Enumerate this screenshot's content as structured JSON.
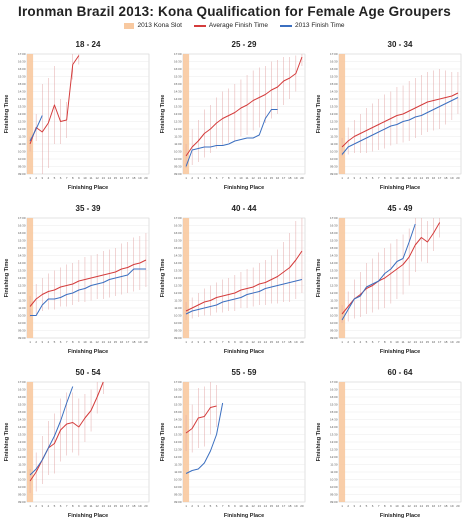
{
  "title": "Ironman Brazil 2013: Kona Qualification for Female Age Groupers",
  "legend": {
    "kona_slot": "2013 Kona Slot",
    "average": "Average Finish Time",
    "finish_2013": "2013 Finish Time"
  },
  "colors": {
    "kona_slot": "#f8c9a0",
    "average": "#d43c3c",
    "finish_2013": "#3b6fc0",
    "error_bars": "#e3a8a8",
    "gridline": "#e6e6e6"
  },
  "axis": {
    "xlabel": "Finishing Place",
    "ylabel": "Finishing Time",
    "x_ticks": [
      "1",
      "2",
      "3",
      "4",
      "5",
      "6",
      "7",
      "8",
      "9",
      "10",
      "11",
      "12",
      "13",
      "14",
      "15",
      "16",
      "17",
      "18",
      "19",
      "20"
    ]
  },
  "chart_data": [
    {
      "type": "line",
      "title": "18 - 24",
      "xlabel": "Finishing Place",
      "ylabel": "Finishing Time",
      "xlim": [
        1,
        20
      ],
      "y_ticks": [
        "09:00",
        "09:30",
        "10:00",
        "10:30",
        "11:00",
        "11:30",
        "12:00",
        "12:30",
        "13:00",
        "13:30",
        "14:00",
        "14:30",
        "15:00",
        "15:30",
        "16:00",
        "16:30",
        "17:00"
      ],
      "ylim": [
        9.0,
        17.0
      ],
      "kona_slots": 1,
      "series": [
        {
          "name": "Average Finish Time",
          "x": [
            1,
            2,
            3,
            4,
            5,
            6,
            7,
            8,
            9
          ],
          "y": [
            11.0,
            12.1,
            11.8,
            12.4,
            13.6,
            12.5,
            12.6,
            16.3,
            16.9
          ],
          "err": [
            0.5,
            0.9,
            3.2,
            3.0,
            2.6,
            1.5,
            1.2,
            1.0,
            0.6
          ]
        },
        {
          "name": "2013 Finish Time",
          "x": [
            1,
            2,
            3
          ],
          "y": [
            11.2,
            12.0,
            12.9
          ]
        }
      ]
    },
    {
      "type": "line",
      "title": "25 - 29",
      "xlabel": "Finishing Place",
      "ylabel": "Finishing Time",
      "xlim": [
        1,
        20
      ],
      "y_ticks": [
        "09:00",
        "09:30",
        "10:00",
        "10:30",
        "11:00",
        "11:30",
        "12:00",
        "12:30",
        "13:00",
        "13:30",
        "14:00",
        "14:30",
        "15:00",
        "15:30",
        "16:00",
        "16:30",
        "17:00"
      ],
      "ylim": [
        9.0,
        17.0
      ],
      "kona_slots": 1,
      "series": [
        {
          "name": "Average Finish Time",
          "x": [
            1,
            2,
            3,
            4,
            5,
            6,
            7,
            8,
            9,
            10,
            11,
            12,
            13,
            14,
            15,
            16,
            17,
            18,
            19,
            20
          ],
          "y": [
            10.2,
            10.8,
            11.2,
            11.7,
            12.0,
            12.4,
            12.7,
            12.9,
            13.1,
            13.4,
            13.6,
            13.9,
            14.1,
            14.3,
            14.6,
            14.8,
            15.2,
            15.4,
            15.7,
            16.8
          ],
          "err": [
            0.8,
            1.2,
            1.4,
            1.6,
            1.6,
            1.7,
            1.8,
            1.8,
            1.9,
            1.9,
            2.0,
            2.0,
            2.0,
            1.9,
            1.9,
            1.8,
            1.6,
            1.4,
            1.2,
            0.6
          ]
        },
        {
          "name": "2013 Finish Time",
          "x": [
            1,
            2,
            3,
            4,
            5,
            6,
            7,
            8,
            9,
            10,
            11,
            12,
            13,
            14,
            15,
            16
          ],
          "y": [
            9.5,
            10.6,
            10.7,
            10.8,
            10.8,
            10.9,
            10.9,
            11.0,
            11.2,
            11.3,
            11.4,
            11.4,
            11.6,
            12.7,
            13.3,
            13.3
          ]
        }
      ]
    },
    {
      "type": "line",
      "title": "30 - 34",
      "xlabel": "Finishing Place",
      "ylabel": "Finishing Time",
      "xlim": [
        1,
        20
      ],
      "y_ticks": [
        "09:00",
        "09:30",
        "10:00",
        "10:30",
        "11:00",
        "11:30",
        "12:00",
        "12:30",
        "13:00",
        "13:30",
        "14:00",
        "14:30",
        "15:00",
        "15:30",
        "16:00",
        "16:30",
        "17:00"
      ],
      "ylim": [
        9.0,
        17.0
      ],
      "kona_slots": 1,
      "series": [
        {
          "name": "Average Finish Time",
          "x": [
            1,
            2,
            3,
            4,
            5,
            6,
            7,
            8,
            9,
            10,
            11,
            12,
            13,
            14,
            15,
            16,
            17,
            18,
            19,
            20
          ],
          "y": [
            10.8,
            11.2,
            11.5,
            11.7,
            11.9,
            12.1,
            12.3,
            12.5,
            12.7,
            12.9,
            13.0,
            13.2,
            13.4,
            13.6,
            13.8,
            13.9,
            14.0,
            14.1,
            14.2,
            14.4
          ],
          "err": [
            0.6,
            0.9,
            1.1,
            1.3,
            1.5,
            1.6,
            1.7,
            1.8,
            1.8,
            1.9,
            1.9,
            2.0,
            2.0,
            2.0,
            2.0,
            2.0,
            2.0,
            1.8,
            1.6,
            1.4
          ]
        },
        {
          "name": "2013 Finish Time",
          "x": [
            1,
            2,
            3,
            4,
            5,
            6,
            7,
            8,
            9,
            10,
            11,
            12,
            13,
            14,
            15,
            16,
            17,
            18,
            19,
            20
          ],
          "y": [
            10.3,
            10.8,
            11.0,
            11.2,
            11.4,
            11.6,
            11.8,
            12.0,
            12.2,
            12.3,
            12.5,
            12.6,
            12.8,
            12.9,
            13.1,
            13.3,
            13.5,
            13.7,
            13.9,
            14.1
          ]
        }
      ]
    },
    {
      "type": "line",
      "title": "35 - 39",
      "xlabel": "Finishing Place",
      "ylabel": "Finishing Time",
      "xlim": [
        1,
        20
      ],
      "y_ticks": [
        "09:00",
        "09:30",
        "10:00",
        "10:30",
        "11:00",
        "11:30",
        "12:00",
        "12:30",
        "13:00",
        "13:30",
        "14:00",
        "14:30",
        "15:00",
        "15:30",
        "16:00",
        "16:30",
        "17:00"
      ],
      "ylim": [
        9.0,
        17.0
      ],
      "kona_slots": 1,
      "series": [
        {
          "name": "Average Finish Time",
          "x": [
            1,
            2,
            3,
            4,
            5,
            6,
            7,
            8,
            9,
            10,
            11,
            12,
            13,
            14,
            15,
            16,
            17,
            18,
            19,
            20
          ],
          "y": [
            11.1,
            11.6,
            11.9,
            12.1,
            12.2,
            12.4,
            12.5,
            12.6,
            12.8,
            12.9,
            13.0,
            13.1,
            13.2,
            13.3,
            13.4,
            13.6,
            13.7,
            13.9,
            14.0,
            14.2
          ],
          "err": [
            0.7,
            1.0,
            1.1,
            1.2,
            1.3,
            1.3,
            1.4,
            1.4,
            1.4,
            1.5,
            1.5,
            1.5,
            1.6,
            1.6,
            1.6,
            1.7,
            1.7,
            1.8,
            1.8,
            1.8
          ]
        },
        {
          "name": "2013 Finish Time",
          "x": [
            1,
            2,
            3,
            4,
            5,
            6,
            7,
            8,
            9,
            10,
            11,
            12,
            13,
            14,
            15,
            16,
            17,
            18,
            19,
            20
          ],
          "y": [
            10.5,
            10.5,
            11.2,
            11.6,
            11.6,
            11.7,
            11.9,
            12.0,
            12.2,
            12.3,
            12.5,
            12.6,
            12.7,
            12.9,
            13.0,
            13.1,
            13.2,
            13.6,
            13.6,
            13.6
          ]
        }
      ]
    },
    {
      "type": "line",
      "title": "40 - 44",
      "xlabel": "Finishing Place",
      "ylabel": "Finishing Time",
      "xlim": [
        1,
        20
      ],
      "y_ticks": [
        "09:00",
        "09:30",
        "10:00",
        "10:30",
        "11:00",
        "11:30",
        "12:00",
        "12:30",
        "13:00",
        "13:30",
        "14:00",
        "14:30",
        "15:00",
        "15:30",
        "16:00",
        "16:30",
        "17:00"
      ],
      "ylim": [
        9.0,
        17.0
      ],
      "kona_slots": 1,
      "series": [
        {
          "name": "Average Finish Time",
          "x": [
            1,
            2,
            3,
            4,
            5,
            6,
            7,
            8,
            9,
            10,
            11,
            12,
            13,
            14,
            15,
            16,
            17,
            18,
            19,
            20
          ],
          "y": [
            10.8,
            11.0,
            11.2,
            11.4,
            11.5,
            11.7,
            11.8,
            11.9,
            12.0,
            12.2,
            12.3,
            12.4,
            12.6,
            12.7,
            12.9,
            13.1,
            13.4,
            13.7,
            14.2,
            14.8
          ],
          "err": [
            0.6,
            0.7,
            0.8,
            0.9,
            1.0,
            1.0,
            1.1,
            1.1,
            1.2,
            1.2,
            1.3,
            1.3,
            1.4,
            1.5,
            1.6,
            1.8,
            2.0,
            2.3,
            2.6,
            2.8
          ]
        },
        {
          "name": "2013 Finish Time",
          "x": [
            1,
            2,
            3,
            4,
            5,
            6,
            7,
            8,
            9,
            10,
            11,
            12,
            13,
            14,
            15,
            16,
            17,
            18,
            19,
            20
          ],
          "y": [
            10.6,
            10.8,
            10.9,
            11.0,
            11.1,
            11.2,
            11.4,
            11.5,
            11.6,
            11.7,
            11.9,
            12.0,
            12.1,
            12.3,
            12.4,
            12.5,
            12.6,
            12.7,
            12.8,
            12.9
          ]
        }
      ]
    },
    {
      "type": "line",
      "title": "45 - 49",
      "xlabel": "Finishing Place",
      "ylabel": "Finishing Time",
      "xlim": [
        1,
        20
      ],
      "y_ticks": [
        "09:00",
        "09:30",
        "10:00",
        "10:30",
        "11:00",
        "11:30",
        "12:00",
        "12:30",
        "13:00",
        "13:30",
        "14:00",
        "14:30",
        "15:00",
        "15:30",
        "16:00",
        "16:30",
        "17:00"
      ],
      "ylim": [
        9.0,
        17.0
      ],
      "kona_slots": 1,
      "series": [
        {
          "name": "Average Finish Time",
          "x": [
            1,
            2,
            3,
            4,
            5,
            6,
            7,
            8,
            9,
            10,
            11,
            12,
            13,
            14,
            15,
            16,
            17
          ],
          "y": [
            10.6,
            11.1,
            11.6,
            11.9,
            12.3,
            12.5,
            12.8,
            13.0,
            13.3,
            13.6,
            13.9,
            14.4,
            15.2,
            15.7,
            15.4,
            16.0,
            16.7
          ],
          "err": [
            0.6,
            1.0,
            1.3,
            1.5,
            1.7,
            1.8,
            1.9,
            2.0,
            2.0,
            2.0,
            2.0,
            1.9,
            1.8,
            1.6,
            1.4,
            1.2,
            1.0
          ]
        },
        {
          "name": "2013 Finish Time",
          "x": [
            1,
            2,
            3,
            4,
            5,
            6,
            7,
            8,
            9,
            10,
            11,
            12,
            13
          ],
          "y": [
            10.2,
            10.9,
            11.6,
            11.8,
            12.4,
            12.6,
            12.8,
            13.3,
            13.6,
            14.1,
            14.3,
            15.4,
            16.6
          ]
        }
      ]
    },
    {
      "type": "line",
      "title": "50 - 54",
      "xlabel": "Finishing Place",
      "ylabel": "Finishing Time",
      "xlim": [
        1,
        20
      ],
      "y_ticks": [
        "09:00",
        "09:30",
        "10:00",
        "10:30",
        "11:00",
        "11:30",
        "12:00",
        "12:30",
        "13:00",
        "13:30",
        "14:00",
        "14:30",
        "15:00",
        "15:30",
        "16:00",
        "16:30",
        "17:00"
      ],
      "ylim": [
        9.0,
        17.0
      ],
      "kona_slots": 1,
      "series": [
        {
          "name": "Average Finish Time",
          "x": [
            1,
            2,
            3,
            4,
            5,
            6,
            7,
            8,
            9,
            10,
            11,
            12,
            13
          ],
          "y": [
            10.4,
            11.0,
            11.8,
            12.6,
            12.9,
            13.8,
            14.2,
            14.3,
            14.0,
            14.6,
            15.1,
            16.0,
            17.0
          ],
          "err": [
            0.8,
            1.3,
            1.6,
            1.8,
            2.0,
            2.1,
            2.1,
            2.0,
            1.9,
            1.6,
            1.4,
            1.1,
            0.8
          ]
        },
        {
          "name": "2013 Finish Time",
          "x": [
            1,
            2,
            3,
            4,
            5,
            6,
            7,
            8
          ],
          "y": [
            10.8,
            11.2,
            11.8,
            12.6,
            13.4,
            14.4,
            15.6,
            16.7
          ]
        }
      ]
    },
    {
      "type": "line",
      "title": "55 - 59",
      "xlabel": "Finishing Place",
      "ylabel": "Finishing Time",
      "xlim": [
        1,
        20
      ],
      "y_ticks": [
        "09:00",
        "09:30",
        "10:00",
        "10:30",
        "11:00",
        "11:30",
        "12:00",
        "12:30",
        "13:00",
        "13:30",
        "14:00",
        "14:30",
        "15:00",
        "15:30",
        "16:00",
        "16:30",
        "17:00"
      ],
      "ylim": [
        9.0,
        17.0
      ],
      "kona_slots": 1,
      "series": [
        {
          "name": "Average Finish Time",
          "x": [
            1,
            2,
            3,
            4,
            5,
            6
          ],
          "y": [
            13.6,
            13.9,
            14.6,
            14.7,
            15.3,
            15.4
          ],
          "err": [
            1.2,
            1.6,
            2.0,
            2.0,
            1.8,
            1.4
          ]
        },
        {
          "name": "2013 Finish Time",
          "x": [
            1,
            2,
            3,
            4,
            5,
            6,
            7
          ],
          "y": [
            10.9,
            11.1,
            11.2,
            11.6,
            12.4,
            13.5,
            15.6
          ]
        }
      ]
    },
    {
      "type": "line",
      "title": "60 - 64",
      "xlabel": "Finishing Place",
      "ylabel": "Finishing Time",
      "xlim": [
        1,
        20
      ],
      "y_ticks": [
        "09:00",
        "09:30",
        "10:00",
        "10:30",
        "11:00",
        "11:30",
        "12:00",
        "12:30",
        "13:00",
        "13:30",
        "14:00",
        "14:30",
        "15:00",
        "15:30",
        "16:00",
        "16:30",
        "17:00"
      ],
      "ylim": [
        9.0,
        17.0
      ],
      "kona_slots": 1,
      "series": []
    }
  ]
}
